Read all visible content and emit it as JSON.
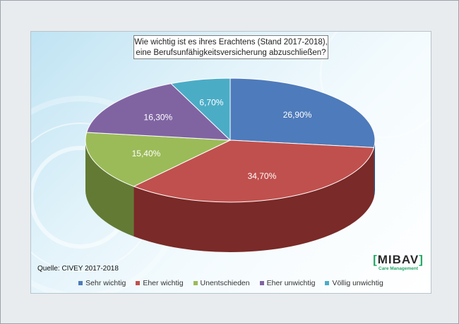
{
  "chart_data": {
    "type": "pie",
    "title_lines": [
      "Wie wichtig ist es ihres Erachtens (Stand 2017-2018),",
      "eine Berufsunfähigkeitsversicherung abzuschließen?"
    ],
    "source": "Quelle: CIVEY 2017-2018",
    "legend_position": "bottom",
    "slices": [
      {
        "name": "Sehr wichtig",
        "value": 26.9,
        "label": "26,90%",
        "color": "#4e7bbb",
        "side": "#2e4f80"
      },
      {
        "name": "Eher wichtig",
        "value": 34.7,
        "label": "34,70%",
        "color": "#c0504d",
        "side": "#7a2a28"
      },
      {
        "name": "Unentschieden",
        "value": 15.4,
        "label": "15,40%",
        "color": "#9bbb59",
        "side": "#637a35"
      },
      {
        "name": "Eher unwichtig",
        "value": 16.3,
        "label": "16,30%",
        "color": "#8064a2",
        "side": "#4f3b68"
      },
      {
        "name": "Völlig unwichtig",
        "value": 6.7,
        "label": "6,70%",
        "color": "#4bacc6",
        "side": "#2b6f82"
      }
    ]
  },
  "logo": {
    "bracket_left": "[",
    "text": "MIBAV",
    "bracket_right": "]",
    "subtitle": "Care Management"
  }
}
